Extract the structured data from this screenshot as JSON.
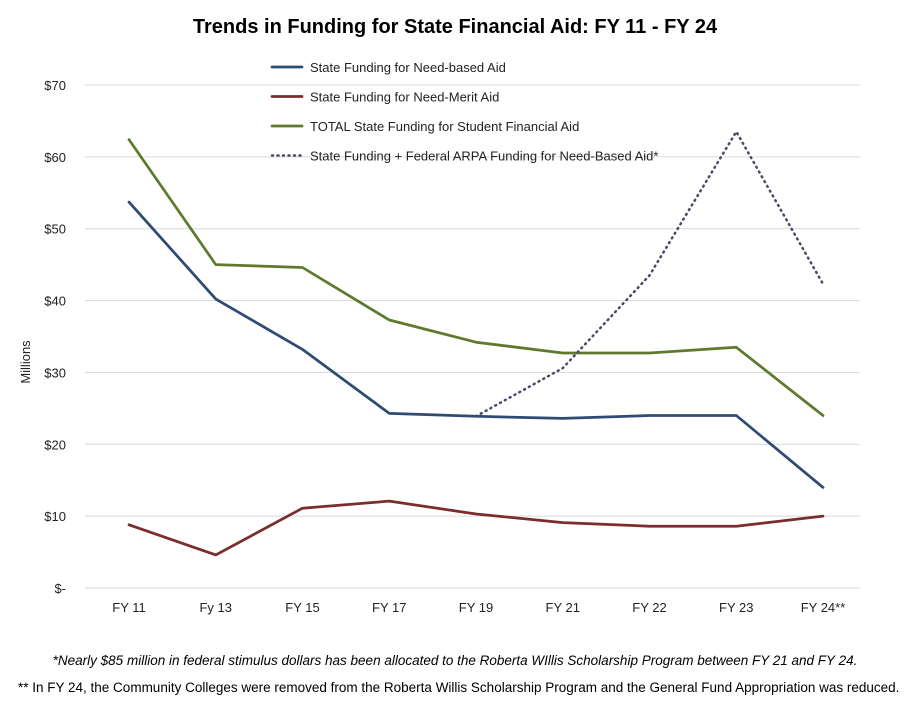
{
  "chart_data": {
    "type": "line",
    "title": "Trends in Funding for State Financial Aid: FY 11 - FY 24",
    "ylabel": "Millions",
    "xlabel": "",
    "categories": [
      "FY 11",
      "Fy 13",
      "FY 15",
      "FY 17",
      "FY 19",
      "FY 21",
      "FY 22",
      "FY 23",
      "FY 24**"
    ],
    "ylim": [
      0,
      70
    ],
    "yticks": [
      0,
      10,
      20,
      30,
      40,
      50,
      60,
      70
    ],
    "ytick_labels": [
      "$-",
      "$10",
      "$20",
      "$30",
      "$40",
      "$50",
      "$60",
      "$70"
    ],
    "grid": true,
    "legend_position": "top",
    "series": [
      {
        "name": "State Funding for Need-based Aid",
        "color": "#2f4b74",
        "style": "solid",
        "values": [
          53.7,
          40.2,
          33.2,
          24.3,
          23.9,
          23.6,
          24.0,
          24.0,
          14.0
        ]
      },
      {
        "name": "State Funding for Need-Merit Aid",
        "color": "#7b2c2c",
        "style": "solid",
        "values": [
          8.8,
          4.6,
          11.1,
          12.1,
          10.3,
          9.1,
          8.6,
          8.6,
          10.0
        ]
      },
      {
        "name": "TOTAL State Funding for Student Financial Aid",
        "color": "#5f7a2e",
        "style": "solid",
        "values": [
          62.4,
          45.0,
          44.6,
          37.3,
          34.2,
          32.7,
          32.7,
          33.5,
          24.0
        ]
      },
      {
        "name": "State Funding + Federal ARPA Funding for Need-Based Aid*",
        "color": "#4a4a66",
        "style": "dotted",
        "values": [
          null,
          null,
          null,
          null,
          23.9,
          30.6,
          43.5,
          63.5,
          42.3
        ]
      }
    ]
  },
  "footnotes": {
    "note1": "*Nearly $85 million in federal stimulus dollars has been allocated to the Roberta WIllis Scholarship Program between FY 21 and FY 24.",
    "note2": "** In FY 24, the Community Colleges were removed from the Roberta Willis Scholarship Program and the General Fund Appropriation was reduced."
  }
}
